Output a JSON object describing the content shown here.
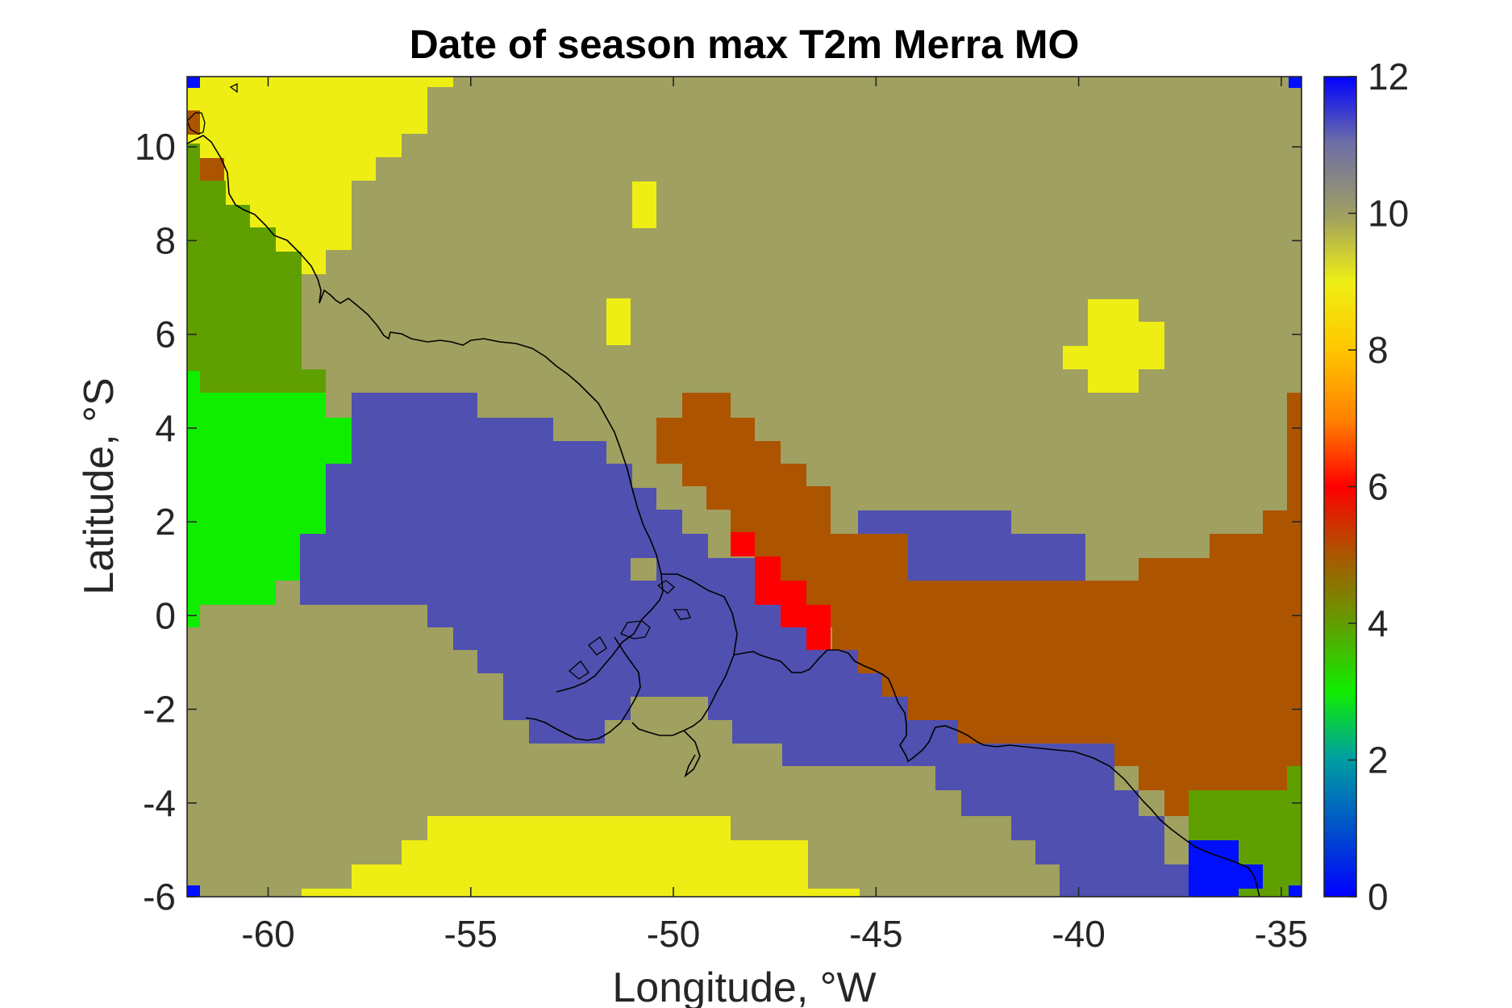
{
  "chart_data": {
    "type": "heatmap",
    "title": "Date of season max T2m Merra MO",
    "xlabel": "Longitude, °W",
    "ylabel": "Latitude, °S",
    "xlim": [
      -62,
      -34.5
    ],
    "ylim": [
      -6,
      11.5
    ],
    "xticks": [
      -60,
      -55,
      -50,
      -45,
      -40,
      -35
    ],
    "yticks": [
      -6,
      -4,
      -2,
      0,
      2,
      4,
      6,
      8,
      10
    ],
    "colorbar": {
      "range": [
        0,
        12
      ],
      "ticks": [
        0,
        2,
        4,
        6,
        8,
        10,
        12
      ],
      "colormap": "jet-like (blue-green-yellow-red-khaki-blue)"
    },
    "regions": [
      {
        "value": 10,
        "color": "#a0a060",
        "area": "background over most of the domain"
      },
      {
        "value": 9,
        "color": "#eeee14",
        "area": "northwest, lon -62 to -55, lat 8 to 11.5"
      },
      {
        "value": 9,
        "color": "#eeee14",
        "area": "south, lon -59 to -45, lat -6 to -4.5"
      },
      {
        "value": 9,
        "color": "#eeee14",
        "area": "east, lon -39.6 to -36.6, lat 4.7 to 6.7"
      },
      {
        "value": 9,
        "color": "#eeee14",
        "area": "small patches near lon -51 and -51.5, lat 6 to 9"
      },
      {
        "value": 11,
        "color": "#5050b0",
        "area": "central band, lon -58.5 to -36.5, lat -6 to 4.7"
      },
      {
        "value": 5,
        "color": "#ad5400",
        "area": "southeast band, lon -50 to -34.5, lat -4.3 to 4.7"
      },
      {
        "value": 6,
        "color": "#ff0000",
        "area": "small patch, lon -48.5 to -46, lat -0.7 to 1.7"
      },
      {
        "value": 4,
        "color": "#5fa000",
        "area": "west, lon -62 to -58.5, lat 5 to 9.5"
      },
      {
        "value": 4,
        "color": "#5fa000",
        "area": "southeast, lon -37 to -34.5, lat -5.5 to -3.3"
      },
      {
        "value": 3,
        "color": "#10ee00",
        "area": "west, lon -62 to -59, lat 0 to 5"
      },
      {
        "value": 0,
        "color": "#0010ff",
        "area": "southeast corner, lon -37 to -35.5, lat -6 to -4.7"
      }
    ]
  }
}
